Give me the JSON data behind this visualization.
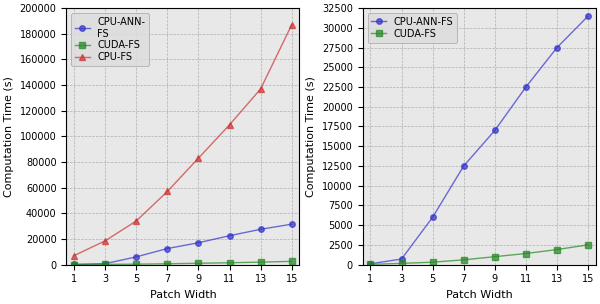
{
  "x": [
    1,
    3,
    5,
    7,
    9,
    11,
    13,
    15
  ],
  "cpu_ann_fs": [
    100,
    700,
    6000,
    12500,
    17000,
    22500,
    27500,
    31500
  ],
  "cuda_fs": [
    20,
    150,
    300,
    600,
    1000,
    1400,
    1900,
    2500
  ],
  "cpu_fs": [
    7000,
    18500,
    34000,
    57000,
    83000,
    109000,
    137000,
    187000
  ],
  "color_cpu_ann": "#3333cc",
  "color_cuda": "#228822",
  "color_cpu_fs": "#cc3333",
  "xlabel": "Patch Width",
  "ylabel": "Computation Time (s)",
  "left_ylim": [
    0,
    200000
  ],
  "left_yticks": [
    0,
    20000,
    40000,
    60000,
    80000,
    100000,
    120000,
    140000,
    160000,
    180000,
    200000
  ],
  "right_ylim": [
    0,
    32500
  ],
  "right_yticks": [
    0,
    2500,
    5000,
    7500,
    10000,
    12500,
    15000,
    17500,
    20000,
    22500,
    25000,
    27500,
    30000,
    32500
  ],
  "xticks": [
    1,
    3,
    5,
    7,
    9,
    11,
    13,
    15
  ],
  "bg_color": "#e8e8e8",
  "grid_color": "#aaaaaa",
  "line_alpha": 0.7,
  "marker_size": 4,
  "line_width": 1.0,
  "tick_fontsize": 7,
  "label_fontsize": 8,
  "legend_fontsize": 7
}
